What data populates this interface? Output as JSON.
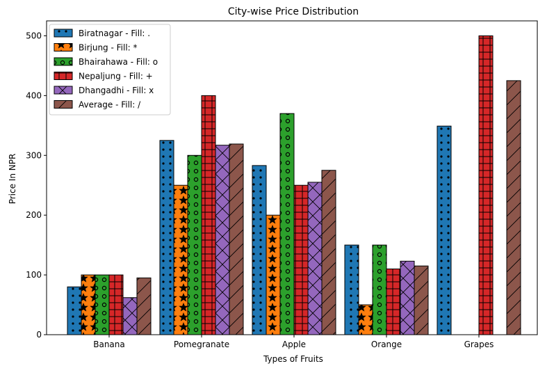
{
  "chart_data": {
    "type": "bar",
    "title": "City-wise Price Distribution",
    "xlabel": "Types of Fruits",
    "ylabel": "Price In NPR",
    "categories": [
      "Banana",
      "Pomegranate",
      "Apple",
      "Orange",
      "Grapes"
    ],
    "ylim": [
      0,
      525
    ],
    "yticks": [
      0,
      100,
      200,
      300,
      400,
      500
    ],
    "legend_position": "top-left",
    "grid": false,
    "series": [
      {
        "name": "Biratnagar - Fill: .",
        "hatch": ".",
        "color": "#1f77b4",
        "values": [
          80,
          325,
          283,
          150,
          349
        ]
      },
      {
        "name": "Birjung - Fill: *",
        "hatch": "*",
        "color": "#ff7f0e",
        "values": [
          100,
          250,
          200,
          50,
          0
        ]
      },
      {
        "name": "Bhairahawa - Fill: o",
        "hatch": "o",
        "color": "#2ca02c",
        "values": [
          100,
          300,
          370,
          150,
          0
        ]
      },
      {
        "name": "Nepaljung - Fill: +",
        "hatch": "+",
        "color": "#d62728",
        "values": [
          100,
          400,
          250,
          110,
          500
        ]
      },
      {
        "name": "Dhangadhi - Fill: x",
        "hatch": "x",
        "color": "#9467bd",
        "values": [
          62,
          317,
          255,
          123,
          0
        ]
      },
      {
        "name": "Average - Fill: /",
        "hatch": "/",
        "color": "#8c564b",
        "values": [
          95,
          319,
          275,
          115,
          425
        ]
      }
    ]
  }
}
